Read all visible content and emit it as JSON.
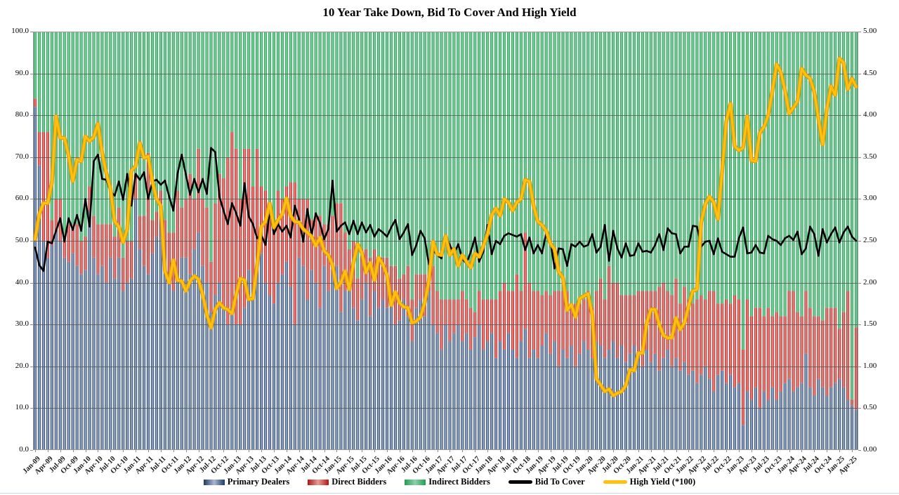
{
  "title": "10 Year Take Down, Bid To Cover And High Yield",
  "legend": {
    "items": [
      {
        "label": "Primary Dealers",
        "kind": "bar",
        "edge": "#1F3B63",
        "mid": "#A9B8D4"
      },
      {
        "label": "Direct Bidders",
        "kind": "bar",
        "edge": "#B41412",
        "mid": "#E69E98"
      },
      {
        "label": "Indirect Bidders",
        "kind": "bar",
        "edge": "#1F9E51",
        "mid": "#8ED1A8"
      },
      {
        "label": "Bid To Cover",
        "kind": "line",
        "color": "#000000"
      },
      {
        "label": "High Yield (*100)",
        "kind": "line",
        "color": "#FFC010"
      }
    ]
  },
  "chart_data": {
    "type": "bar",
    "subtype": "stacked-percent-with-lines",
    "grid": true,
    "left_axis": {
      "min": 0,
      "max": 100,
      "step": 10,
      "decimals": 1
    },
    "right_axis": {
      "min": 0,
      "max": 5,
      "step": 0.5,
      "decimals": 2
    },
    "x_tick_every": 3,
    "categories": [
      "Jan-09",
      "Feb-09",
      "Mar-09",
      "Apr-09",
      "May-09",
      "Jun-09",
      "Jul-09",
      "Aug-09",
      "Sep-09",
      "Oct-09",
      "Nov-09",
      "Dec-09",
      "Jan-10",
      "Feb-10",
      "Mar-10",
      "Apr-10",
      "May-10",
      "Jun-10",
      "Jul-10",
      "Aug-10",
      "Sep-10",
      "Oct-10",
      "Nov-10",
      "Dec-10",
      "Jan-11",
      "Feb-11",
      "Mar-11",
      "Apr-11",
      "May-11",
      "Jun-11",
      "Jul-11",
      "Aug-11",
      "Sep-11",
      "Oct-11",
      "Nov-11",
      "Dec-11",
      "Jan-12",
      "Feb-12",
      "Mar-12",
      "Apr-12",
      "May-12",
      "Jun-12",
      "Jul-12",
      "Aug-12",
      "Sep-12",
      "Oct-12",
      "Nov-12",
      "Dec-12",
      "Jan-13",
      "Feb-13",
      "Mar-13",
      "Apr-13",
      "May-13",
      "Jun-13",
      "Jul-13",
      "Aug-13",
      "Sep-13",
      "Oct-13",
      "Nov-13",
      "Dec-13",
      "Jan-14",
      "Feb-14",
      "Mar-14",
      "Apr-14",
      "May-14",
      "Jun-14",
      "Jul-14",
      "Aug-14",
      "Sep-14",
      "Oct-14",
      "Nov-14",
      "Dec-14",
      "Jan-15",
      "Feb-15",
      "Mar-15",
      "Apr-15",
      "May-15",
      "Jun-15",
      "Jul-15",
      "Aug-15",
      "Sep-15",
      "Oct-15",
      "Nov-15",
      "Dec-15",
      "Jan-16",
      "Feb-16",
      "Mar-16",
      "Apr-16",
      "May-16",
      "Jun-16",
      "Jul-16",
      "Aug-16",
      "Sep-16",
      "Oct-16",
      "Nov-16",
      "Dec-16",
      "Jan-17",
      "Feb-17",
      "Mar-17",
      "Apr-17",
      "May-17",
      "Jun-17",
      "Jul-17",
      "Aug-17",
      "Sep-17",
      "Oct-17",
      "Nov-17",
      "Dec-17",
      "Jan-18",
      "Feb-18",
      "Mar-18",
      "Apr-18",
      "May-18",
      "Jun-18",
      "Jul-18",
      "Aug-18",
      "Sep-18",
      "Oct-18",
      "Nov-18",
      "Dec-18",
      "Jan-19",
      "Feb-19",
      "Mar-19",
      "Apr-19",
      "May-19",
      "Jun-19",
      "Jul-19",
      "Aug-19",
      "Sep-19",
      "Oct-19",
      "Nov-19",
      "Dec-19",
      "Jan-20",
      "Feb-20",
      "Mar-20",
      "Apr-20",
      "May-20",
      "Jun-20",
      "Jul-20",
      "Aug-20",
      "Sep-20",
      "Oct-20",
      "Nov-20",
      "Dec-20",
      "Jan-21",
      "Feb-21",
      "Mar-21",
      "Apr-21",
      "May-21",
      "Jun-21",
      "Jul-21",
      "Aug-21",
      "Sep-21",
      "Oct-21",
      "Nov-21",
      "Dec-21",
      "Jan-22",
      "Feb-22",
      "Mar-22",
      "Apr-22",
      "May-22",
      "Jun-22",
      "Jul-22",
      "Aug-22",
      "Sep-22",
      "Oct-22",
      "Nov-22",
      "Dec-22",
      "Jan-23",
      "Feb-23",
      "Mar-23",
      "Apr-23",
      "May-23",
      "Jun-23",
      "Jul-23",
      "Aug-23",
      "Sep-23",
      "Oct-23",
      "Nov-23",
      "Dec-23",
      "Jan-24",
      "Feb-24",
      "Mar-24",
      "Apr-24",
      "May-24",
      "Jun-24",
      "Jul-24",
      "Aug-24",
      "Sep-24",
      "Oct-24",
      "Nov-24",
      "Dec-24",
      "Jan-25",
      "Feb-25",
      "Mar-25",
      "Apr-25",
      "May-25"
    ],
    "series": [
      {
        "name": "Primary Dealers",
        "type": "bar",
        "axis": "left",
        "edge": "#1F3B63",
        "mid": "#A9B8D4",
        "values": [
          82,
          68,
          50,
          46,
          49,
          52,
          50,
          46,
          45,
          47,
          44,
          42,
          43,
          57,
          46,
          42,
          44,
          40,
          46,
          41,
          46,
          38,
          40,
          41,
          60,
          48,
          44,
          42,
          47,
          51,
          57,
          45,
          40,
          38,
          42,
          46,
          46,
          42,
          48,
          52,
          44,
          40,
          33,
          37,
          40,
          34,
          30,
          34,
          30,
          30,
          34,
          43,
          39,
          45,
          47,
          40,
          37,
          35,
          40,
          42,
          45,
          39,
          30,
          46,
          44,
          36,
          43,
          40,
          34,
          44,
          38,
          42,
          44,
          33,
          38,
          40,
          34,
          31,
          36,
          40,
          32,
          38,
          34,
          36,
          34,
          36,
          30,
          31,
          36,
          32,
          26,
          34,
          36,
          32,
          38,
          30,
          28,
          24,
          30,
          26,
          28,
          30,
          26,
          28,
          24,
          27,
          30,
          24,
          26,
          28,
          22,
          26,
          24,
          28,
          24,
          22,
          26,
          29,
          22,
          24,
          22,
          25,
          28,
          23,
          26,
          20,
          24,
          22,
          25,
          20,
          23,
          26,
          24,
          22,
          26,
          25,
          22,
          24,
          26,
          22,
          25,
          21,
          23,
          25,
          22,
          20,
          24,
          21,
          23,
          19,
          22,
          24,
          20,
          22,
          19,
          21,
          18,
          19,
          16,
          18,
          20,
          17,
          14,
          18,
          19,
          16,
          18,
          15,
          16,
          6,
          14,
          12,
          15,
          10,
          14,
          12,
          15,
          12,
          14,
          16,
          17,
          14,
          15,
          16,
          23,
          15,
          13,
          17,
          15,
          13,
          15,
          16,
          17,
          15,
          12,
          10.7,
          9.7
        ]
      },
      {
        "name": "Direct Bidders",
        "type": "bar",
        "axis": "left",
        "edge": "#B41412",
        "mid": "#E69E98",
        "values": [
          2,
          8,
          26,
          30,
          6,
          8,
          10,
          5,
          9,
          7,
          10,
          8,
          8,
          6,
          10,
          12,
          10,
          14,
          8,
          10,
          12,
          8,
          10,
          9,
          6,
          8,
          12,
          29,
          8,
          6,
          5,
          10,
          12,
          14,
          20,
          12,
          14,
          24,
          12,
          20,
          16,
          18,
          12,
          22,
          26,
          31,
          40,
          42,
          42,
          30,
          38,
          29,
          24,
          27,
          16,
          22,
          20,
          18,
          22,
          18,
          18,
          25,
          34,
          14,
          16,
          24,
          12,
          16,
          22,
          10,
          16,
          14,
          15,
          26,
          14,
          8,
          16,
          10,
          12,
          8,
          14,
          10,
          12,
          10,
          12,
          8,
          14,
          10,
          6,
          12,
          10,
          8,
          6,
          10,
          4,
          14,
          10,
          12,
          6,
          10,
          8,
          6,
          12,
          8,
          10,
          6,
          8,
          12,
          10,
          8,
          14,
          12,
          16,
          10,
          14,
          20,
          12,
          23,
          18,
          14,
          16,
          12,
          10,
          14,
          12,
          18,
          14,
          16,
          10,
          15,
          12,
          10,
          14,
          12,
          12,
          16,
          14,
          20,
          14,
          18,
          12,
          16,
          14,
          12,
          16,
          18,
          14,
          17,
          15,
          20,
          18,
          14,
          17,
          19,
          16,
          18,
          18,
          16,
          20,
          19,
          16,
          21,
          24,
          17,
          16,
          20,
          17,
          22,
          20,
          18,
          22,
          20,
          19,
          24,
          18,
          22,
          17,
          21,
          18,
          16,
          21,
          24,
          18,
          16,
          15,
          19,
          19,
          15,
          16,
          21,
          19,
          18,
          12,
          18,
          26,
          1.4,
          19.6
        ]
      },
      {
        "name": "Indirect Bidders",
        "type": "bar",
        "axis": "left",
        "edge": "#1F9E51",
        "mid": "#8ED1A8",
        "values": [
          16,
          24,
          24,
          24,
          45,
          40,
          40,
          49,
          46,
          46,
          46,
          50,
          49,
          37,
          44,
          46,
          46,
          46,
          46,
          49,
          42,
          54,
          50,
          50,
          34,
          44,
          44,
          29,
          45,
          43,
          38,
          45,
          48,
          48,
          38,
          42,
          40,
          34,
          40,
          28,
          40,
          42,
          55,
          41,
          34,
          35,
          30,
          24,
          28,
          40,
          28,
          28,
          37,
          28,
          37,
          38,
          43,
          47,
          38,
          40,
          37,
          36,
          36,
          40,
          40,
          40,
          45,
          44,
          44,
          46,
          46,
          44,
          41,
          41,
          48,
          52,
          50,
          59,
          52,
          52,
          54,
          52,
          54,
          54,
          54,
          56,
          56,
          59,
          58,
          56,
          64,
          58,
          58,
          58,
          58,
          56,
          62,
          64,
          64,
          64,
          64,
          64,
          62,
          64,
          66,
          67,
          62,
          64,
          64,
          64,
          64,
          62,
          60,
          62,
          62,
          58,
          62,
          48,
          60,
          62,
          62,
          63,
          62,
          63,
          62,
          62,
          62,
          62,
          65,
          65,
          65,
          64,
          62,
          66,
          62,
          59,
          64,
          56,
          60,
          60,
          63,
          63,
          63,
          63,
          62,
          62,
          62,
          62,
          62,
          61,
          60,
          62,
          63,
          59,
          65,
          61,
          64,
          65,
          64,
          63,
          64,
          62,
          62,
          65,
          65,
          64,
          65,
          63,
          64,
          76,
          64,
          68,
          66,
          66,
          68,
          66,
          68,
          67,
          68,
          68,
          62,
          62,
          67,
          68,
          62,
          66,
          68,
          68,
          69,
          66,
          66,
          66,
          71,
          67,
          62,
          87.9,
          70.7
        ]
      },
      {
        "name": "Bid To Cover",
        "type": "line",
        "axis": "right",
        "color": "#000000",
        "width": 2.6,
        "values": [
          2.42,
          2.21,
          2.14,
          2.49,
          2.47,
          2.62,
          2.77,
          2.49,
          2.77,
          2.63,
          2.81,
          2.62,
          3.0,
          2.67,
          3.45,
          3.53,
          3.24,
          3.23,
          3.09,
          3.04,
          3.21,
          2.99,
          3.3,
          2.92,
          3.3,
          3.23,
          3.32,
          3.0,
          3.21,
          3.23,
          3.17,
          3.22,
          3.03,
          2.86,
          3.3,
          3.53,
          3.29,
          3.05,
          3.24,
          3.08,
          3.24,
          3.06,
          3.61,
          3.56,
          3.03,
          2.86,
          2.7,
          2.95,
          2.83,
          2.68,
          3.19,
          2.79,
          2.7,
          2.53,
          2.57,
          2.45,
          2.86,
          2.58,
          2.7,
          2.61,
          2.68,
          2.54,
          2.92,
          2.76,
          2.49,
          2.88,
          2.57,
          2.83,
          2.71,
          2.52,
          2.64,
          3.22,
          2.61,
          2.68,
          2.72,
          2.58,
          2.74,
          2.58,
          2.72,
          2.6,
          2.69,
          2.55,
          2.64,
          2.6,
          2.55,
          2.66,
          2.75,
          2.52,
          2.6,
          2.7,
          2.33,
          2.45,
          2.62,
          2.53,
          2.22,
          2.39,
          2.33,
          2.29,
          2.55,
          2.45,
          2.34,
          2.46,
          2.28,
          2.23,
          2.37,
          2.54,
          2.25,
          2.37,
          2.69,
          2.34,
          2.5,
          2.46,
          2.56,
          2.59,
          2.57,
          2.55,
          2.58,
          2.39,
          2.54,
          2.35,
          2.45,
          2.35,
          2.59,
          2.5,
          2.17,
          2.41,
          2.4,
          2.2,
          2.46,
          2.43,
          2.49,
          2.43,
          2.45,
          2.58,
          2.36,
          2.43,
          2.69,
          2.26,
          2.62,
          2.41,
          2.3,
          2.47,
          2.32,
          2.33,
          2.47,
          2.37,
          2.38,
          2.36,
          2.45,
          2.58,
          2.39,
          2.65,
          2.59,
          2.58,
          2.35,
          2.43,
          2.43,
          2.68,
          2.67,
          2.43,
          2.49,
          2.5,
          2.34,
          2.53,
          2.37,
          2.34,
          2.31,
          2.31,
          2.53,
          2.66,
          2.35,
          2.36,
          2.45,
          2.36,
          2.35,
          2.56,
          2.52,
          2.5,
          2.45,
          2.53,
          2.56,
          2.51,
          2.61,
          2.34,
          2.41,
          2.67,
          2.58,
          2.32,
          2.64,
          2.48,
          2.58,
          2.66,
          2.48,
          2.6,
          2.67,
          2.55,
          2.5
        ]
      },
      {
        "name": "High Yield (*100)",
        "type": "line",
        "axis": "right",
        "color": "#FFC010",
        "width": 4,
        "values": [
          2.52,
          2.82,
          2.95,
          2.95,
          3.19,
          3.99,
          3.73,
          3.73,
          3.52,
          3.21,
          3.47,
          3.45,
          3.75,
          3.69,
          3.74,
          3.9,
          3.55,
          3.31,
          3.12,
          2.73,
          2.67,
          2.48,
          2.64,
          3.34,
          3.39,
          3.67,
          3.49,
          3.51,
          3.21,
          3.0,
          2.92,
          2.14,
          2.0,
          2.27,
          2.03,
          2.02,
          1.9,
          2.02,
          2.08,
          2.04,
          1.86,
          1.62,
          1.46,
          1.68,
          1.76,
          1.7,
          1.68,
          1.63,
          1.86,
          2.05,
          2.03,
          1.8,
          1.81,
          2.21,
          2.67,
          2.73,
          2.95,
          2.66,
          2.75,
          2.82,
          3.01,
          2.8,
          2.73,
          2.72,
          2.64,
          2.6,
          2.55,
          2.44,
          2.54,
          2.38,
          2.33,
          2.21,
          1.93,
          2.0,
          2.14,
          1.92,
          2.24,
          2.46,
          2.36,
          2.12,
          2.24,
          2.03,
          2.3,
          2.22,
          2.09,
          1.73,
          1.89,
          1.76,
          1.71,
          1.7,
          1.52,
          1.54,
          1.59,
          1.76,
          2.02,
          2.49,
          2.34,
          2.33,
          2.56,
          2.33,
          2.4,
          2.2,
          2.33,
          2.25,
          2.18,
          2.35,
          2.31,
          2.44,
          2.58,
          2.81,
          2.89,
          2.8,
          3.0,
          2.96,
          2.86,
          2.96,
          3.0,
          3.23,
          3.21,
          2.92,
          2.73,
          2.69,
          2.62,
          2.47,
          2.4,
          2.13,
          2.06,
          1.67,
          1.74,
          1.59,
          1.81,
          1.84,
          1.87,
          1.62,
          0.85,
          0.78,
          0.7,
          0.73,
          0.65,
          0.68,
          0.7,
          0.77,
          0.96,
          0.95,
          1.16,
          1.16,
          1.52,
          1.68,
          1.68,
          1.5,
          1.37,
          1.34,
          1.34,
          1.58,
          1.44,
          1.52,
          1.72,
          1.9,
          1.92,
          2.72,
          2.94,
          3.03,
          2.96,
          2.76,
          3.33,
          3.93,
          4.14,
          3.63,
          3.58,
          3.61,
          3.99,
          3.46,
          3.45,
          3.79,
          3.86,
          4.0,
          4.29,
          4.61,
          4.52,
          4.3,
          4.02,
          4.09,
          4.17,
          4.56,
          4.48,
          4.44,
          4.28,
          3.96,
          3.65,
          4.07,
          4.35,
          4.24,
          4.68,
          4.63,
          4.31,
          4.44,
          4.34
        ]
      }
    ]
  }
}
